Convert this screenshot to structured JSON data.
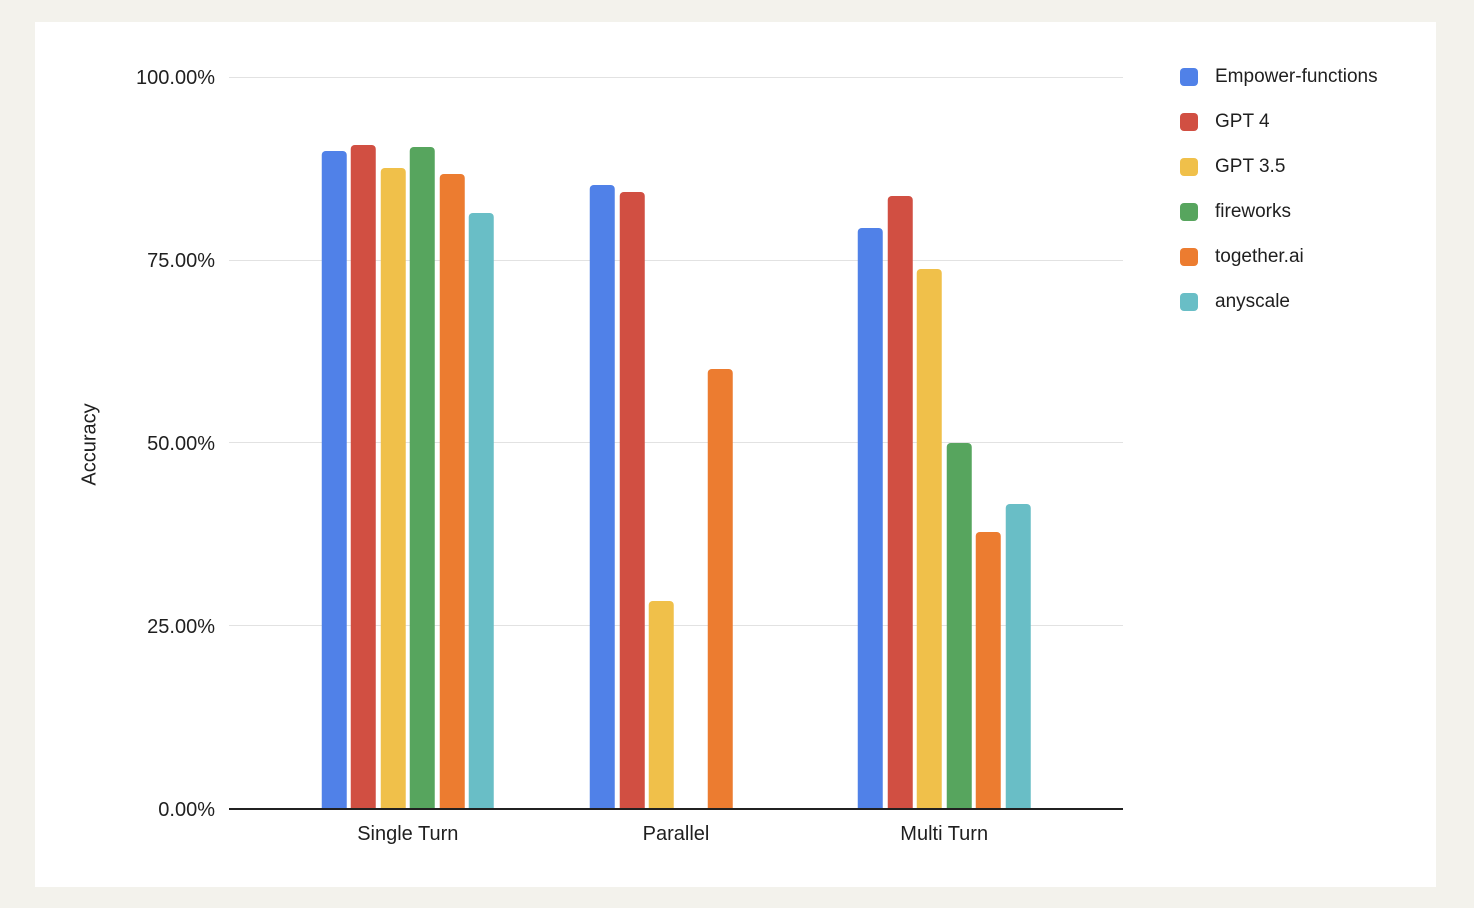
{
  "chart_data": {
    "type": "bar",
    "title": "",
    "xlabel": "",
    "ylabel": "Accuracy",
    "ylim": [
      0,
      100
    ],
    "unit": "percent",
    "grid": "horizontal",
    "legend_position": "right",
    "y_ticks": [
      {
        "label": "100.00%",
        "value": 100
      },
      {
        "label": "75.00%",
        "value": 75
      },
      {
        "label": "50.00%",
        "value": 50
      },
      {
        "label": "25.00%",
        "value": 25
      },
      {
        "label": "0.00%",
        "value": 0
      }
    ],
    "categories": [
      "Single Turn",
      "Parallel",
      "Multi Turn"
    ],
    "series": [
      {
        "name": "Empower-functions",
        "color": "#5081E8",
        "values": [
          90.0,
          85.4,
          79.4
        ]
      },
      {
        "name": "GPT 4",
        "color": "#D14F42",
        "values": [
          90.8,
          84.4,
          83.9
        ]
      },
      {
        "name": "GPT 3.5",
        "color": "#F0C04A",
        "values": [
          87.7,
          28.4,
          73.8
        ]
      },
      {
        "name": "fireworks",
        "color": "#57A55E",
        "values": [
          90.6,
          0,
          50.0
        ]
      },
      {
        "name": "together.ai",
        "color": "#EC7C30",
        "values": [
          86.8,
          60.2,
          37.8
        ]
      },
      {
        "name": "anyscale",
        "color": "#69BEC6",
        "values": [
          81.5,
          0,
          41.7
        ]
      }
    ]
  },
  "colors": {
    "page_background": "#F3F2EC",
    "card_background": "#FFFFFF",
    "gridline": "#E2E2E2",
    "axis_line": "#212121",
    "label_text": "#1F1F1F"
  }
}
